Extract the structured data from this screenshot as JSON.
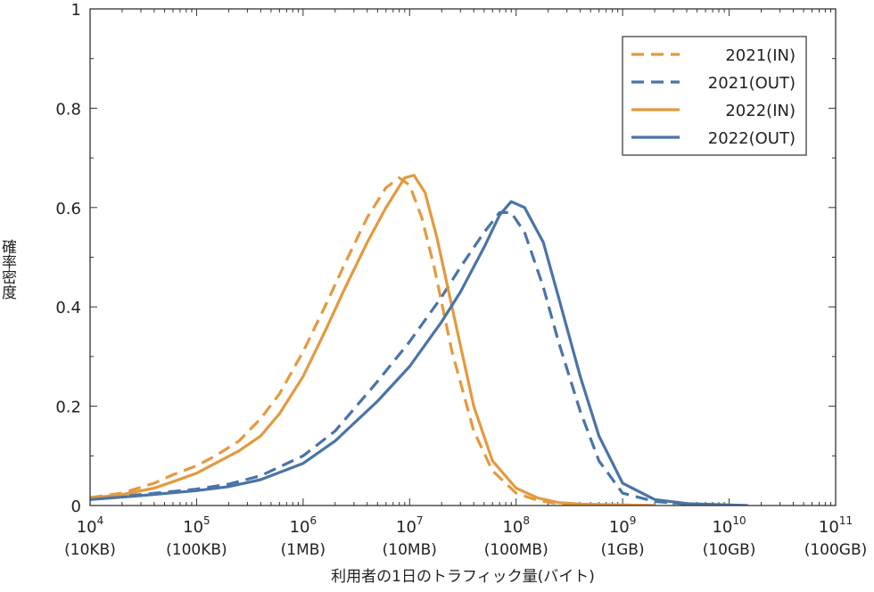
{
  "chart_data": {
    "type": "line",
    "title": "",
    "xlabel": "利用者の1日のトラフィック量(バイト)",
    "ylabel": "確率密度",
    "x_scale": "log",
    "xlim": [
      10000,
      100000000000
    ],
    "ylim": [
      0,
      1
    ],
    "grid": false,
    "legend_position": "top-right",
    "y_ticks": [
      "0",
      "0.2",
      "0.4",
      "0.6",
      "0.8",
      "1"
    ],
    "x_ticks": [
      {
        "base": "10",
        "exp": "4",
        "sub": "(10KB)"
      },
      {
        "base": "10",
        "exp": "5",
        "sub": "(100KB)"
      },
      {
        "base": "10",
        "exp": "6",
        "sub": "(1MB)"
      },
      {
        "base": "10",
        "exp": "7",
        "sub": "(10MB)"
      },
      {
        "base": "10",
        "exp": "8",
        "sub": "(100MB)"
      },
      {
        "base": "10",
        "exp": "9",
        "sub": "(1GB)"
      },
      {
        "base": "10",
        "exp": "10",
        "sub": "(10GB)"
      },
      {
        "base": "10",
        "exp": "11",
        "sub": "(100GB)"
      }
    ],
    "series": [
      {
        "name": "2021(IN)",
        "color": "#E39A3F",
        "dash": true,
        "x": [
          10000,
          20000,
          40000,
          60000,
          100000,
          150000,
          250000,
          400000,
          600000,
          1000000,
          1600000,
          2500000,
          4000000,
          6000000,
          8000000,
          10000000,
          13000000,
          17000000,
          25000000,
          40000000,
          60000000,
          100000000,
          160000000,
          250000000,
          400000000,
          1000000000,
          2000000000
        ],
        "y": [
          0.016,
          0.025,
          0.045,
          0.062,
          0.08,
          0.1,
          0.13,
          0.175,
          0.225,
          0.31,
          0.4,
          0.49,
          0.58,
          0.64,
          0.66,
          0.645,
          0.58,
          0.48,
          0.31,
          0.15,
          0.07,
          0.025,
          0.01,
          0.004,
          0.002,
          0.001,
          0.0
        ]
      },
      {
        "name": "2021(OUT)",
        "color": "#4A74A8",
        "dash": true,
        "x": [
          10000,
          30000,
          100000,
          200000,
          400000,
          1000000,
          2000000,
          5000000,
          10000000,
          20000000,
          30000000,
          50000000,
          70000000,
          90000000,
          120000000,
          180000000,
          250000000,
          400000000,
          600000000,
          1000000000,
          2000000000,
          4000000000,
          10000000000
        ],
        "y": [
          0.014,
          0.022,
          0.033,
          0.043,
          0.06,
          0.1,
          0.15,
          0.25,
          0.33,
          0.42,
          0.48,
          0.55,
          0.59,
          0.59,
          0.55,
          0.44,
          0.33,
          0.19,
          0.09,
          0.025,
          0.008,
          0.003,
          0.001
        ]
      },
      {
        "name": "2022(IN)",
        "color": "#E39A3F",
        "dash": false,
        "x": [
          10000,
          20000,
          40000,
          60000,
          100000,
          150000,
          250000,
          400000,
          600000,
          1000000,
          1600000,
          2500000,
          4000000,
          6000000,
          9000000,
          11000000,
          14000000,
          18000000,
          25000000,
          40000000,
          60000000,
          100000000,
          160000000,
          250000000,
          400000000,
          1000000000,
          2000000000
        ],
        "y": [
          0.015,
          0.022,
          0.035,
          0.048,
          0.065,
          0.085,
          0.11,
          0.14,
          0.185,
          0.26,
          0.35,
          0.44,
          0.53,
          0.6,
          0.66,
          0.665,
          0.63,
          0.54,
          0.4,
          0.2,
          0.09,
          0.035,
          0.015,
          0.006,
          0.003,
          0.001,
          0.0
        ]
      },
      {
        "name": "2022(OUT)",
        "color": "#4A74A8",
        "dash": false,
        "x": [
          10000,
          30000,
          100000,
          200000,
          400000,
          1000000,
          2000000,
          5000000,
          10000000,
          20000000,
          30000000,
          50000000,
          70000000,
          90000000,
          120000000,
          180000000,
          250000000,
          400000000,
          600000000,
          1000000000,
          2000000000,
          4000000000,
          10000000000,
          15000000000
        ],
        "y": [
          0.012,
          0.02,
          0.03,
          0.038,
          0.052,
          0.085,
          0.13,
          0.21,
          0.28,
          0.37,
          0.43,
          0.52,
          0.585,
          0.612,
          0.6,
          0.53,
          0.42,
          0.26,
          0.14,
          0.045,
          0.012,
          0.004,
          0.001,
          0.0
        ]
      }
    ]
  }
}
